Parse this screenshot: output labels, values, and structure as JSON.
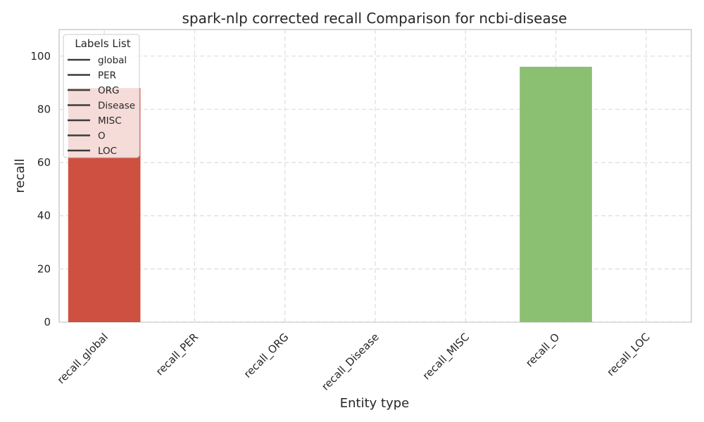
{
  "chart_data": {
    "type": "bar",
    "title": "spark-nlp corrected recall Comparison for ncbi-disease",
    "xlabel": "Entity type",
    "ylabel": "recall",
    "categories": [
      "recall_global",
      "recall_PER",
      "recall_ORG",
      "recall_Disease",
      "recall_MISC",
      "recall_O",
      "recall_LOC"
    ],
    "values": [
      88,
      0,
      0,
      0,
      0,
      96,
      0
    ],
    "bar_colors": [
      "#cd5040",
      "#e4735a",
      "#f2a08c",
      "#f6c8b8",
      "#e0efd0",
      "#8bbf72",
      "#2e8b57"
    ],
    "ylim": [
      0,
      110
    ],
    "yticks": [
      0,
      20,
      40,
      60,
      80,
      100
    ],
    "grid": true,
    "legend": {
      "title": "Labels List",
      "placement": "top-left",
      "entries": [
        "global",
        "PER",
        "ORG",
        "Disease",
        "MISC",
        "O",
        "LOC"
      ]
    }
  }
}
